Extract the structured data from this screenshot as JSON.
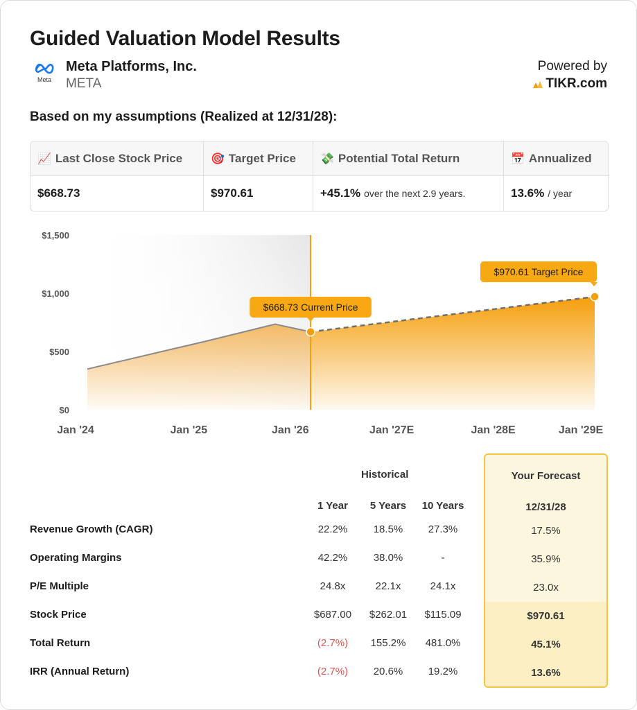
{
  "header": {
    "title": "Guided Valuation Model Results",
    "company": "Meta Platforms, Inc.",
    "ticker": "META",
    "logo_text": "Meta",
    "powered_by": "Powered by",
    "brand": "TIKR.com"
  },
  "subtitle": "Based on my assumptions (Realized at 12/31/28):",
  "summary": [
    {
      "icon": "chart-increasing-icon",
      "glyph": "📈",
      "label": "Last Close Stock Price",
      "value": "$668.73",
      "suffix": ""
    },
    {
      "icon": "target-icon",
      "glyph": "🎯",
      "label": "Target Price",
      "value": "$970.61",
      "suffix": ""
    },
    {
      "icon": "money-wings-icon",
      "glyph": "💸",
      "label": "Potential Total Return",
      "value": "+45.1%",
      "suffix": "over the next 2.9 years."
    },
    {
      "icon": "calendar-icon",
      "glyph": "📅",
      "label": "Annualized",
      "value": "13.6%",
      "suffix": "/ year"
    }
  ],
  "chart_data": {
    "type": "area",
    "x_ticks": [
      "Jan '24",
      "Jan '25",
      "Jan '26",
      "Jan '27E",
      "Jan '28E",
      "Jan '29E"
    ],
    "y_ticks": [
      "$0",
      "$500",
      "$1,000",
      "$1,500"
    ],
    "ylim": [
      0,
      1500
    ],
    "historical": {
      "x": [
        "Jan '24",
        "Jan '25",
        "Sep '25",
        "Jan '26"
      ],
      "x_years": [
        2024.0,
        2025.15,
        2025.85,
        2026.2
      ],
      "y": [
        350,
        585,
        735,
        669
      ]
    },
    "forecast": {
      "x_years": [
        2026.2,
        2029.0
      ],
      "y": [
        669,
        971
      ]
    },
    "current_label": "$668.73 Current Price",
    "target_label": "$970.61 Target Price",
    "colors": {
      "historical_fill": "#f3b760",
      "forecast_fill": "#f59e0b",
      "line": "#888888",
      "marker": "#f59e0b"
    }
  },
  "table": {
    "historical_header": "Historical",
    "forecast_header": "Your Forecast",
    "columns": [
      "1 Year",
      "5 Years",
      "10 Years"
    ],
    "forecast_column": "12/31/28",
    "rows": [
      {
        "label": "Revenue Growth (CAGR)",
        "values": [
          "22.2%",
          "18.5%",
          "27.3%"
        ],
        "forecast": "17.5%"
      },
      {
        "label": "Operating Margins",
        "values": [
          "42.2%",
          "38.0%",
          "-"
        ],
        "forecast": "35.9%"
      },
      {
        "label": "P/E Multiple",
        "values": [
          "24.8x",
          "22.1x",
          "24.1x"
        ],
        "forecast": "23.0x"
      },
      {
        "label": "Stock Price",
        "values": [
          "$687.00",
          "$262.01",
          "$115.09"
        ],
        "forecast": "$970.61"
      },
      {
        "label": "Total Return",
        "values": [
          "(2.7%)",
          "155.2%",
          "481.0%"
        ],
        "forecast": "45.1%"
      },
      {
        "label": "IRR (Annual Return)",
        "values": [
          "(2.7%)",
          "20.6%",
          "19.2%"
        ],
        "forecast": "13.6%"
      }
    ]
  }
}
